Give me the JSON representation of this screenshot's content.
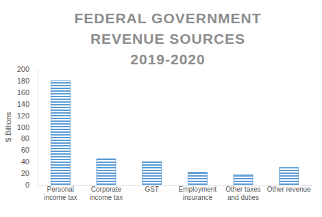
{
  "chart_data": {
    "type": "bar",
    "title": "FEDERAL GOVERNMENT REVENUE SOURCES 2019-2020",
    "y_label": "$ Billions",
    "categories": [
      "Personal income tax",
      "Corporate income tax",
      "GST",
      "Employment insurance",
      "Other taxes and duties",
      "Other revenue"
    ],
    "values": [
      180,
      45,
      40,
      22,
      18,
      30
    ],
    "color": "#5b9bd5",
    "ylim": [
      0,
      200
    ],
    "yticks": [
      0,
      20,
      40,
      60,
      80,
      100,
      120,
      140,
      160,
      180,
      200
    ],
    "grid": false
  }
}
